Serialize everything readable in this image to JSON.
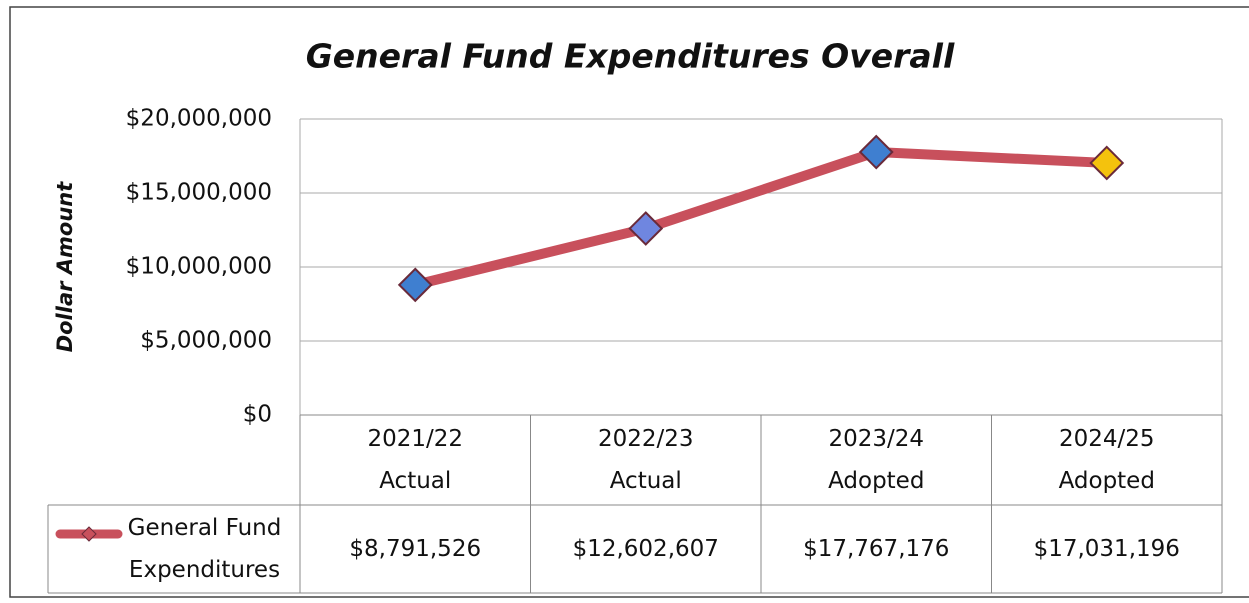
{
  "chart_data": {
    "type": "line",
    "title": "General Fund Expenditures Overall",
    "y_label": "Dollar Amount",
    "categories": [
      "2021/22 Actual",
      "2022/23 Actual",
      "2023/24 Adopted",
      "2024/25 Adopted"
    ],
    "series": [
      {
        "name": "General Fund Expenditures",
        "color": "#c8505c",
        "marker_colors": [
          "#3f7fd0",
          "#6f86e0",
          "#3f7fd0",
          "#f4c20d"
        ],
        "values": [
          8791526,
          12602607,
          17767176,
          17031196
        ],
        "value_labels": [
          "$8,791,526",
          "$12,602,607",
          "$17,767,176",
          "$17,031,196"
        ]
      }
    ],
    "ylim": [
      0,
      20000000
    ],
    "yticks": [
      {
        "value": 0,
        "label": "$0"
      },
      {
        "value": 5000000,
        "label": "$5,000,000"
      },
      {
        "value": 10000000,
        "label": "$10,000,000"
      },
      {
        "value": 15000000,
        "label": "$15,000,000"
      },
      {
        "value": 20000000,
        "label": "$20,000,000"
      }
    ],
    "grid": true
  }
}
